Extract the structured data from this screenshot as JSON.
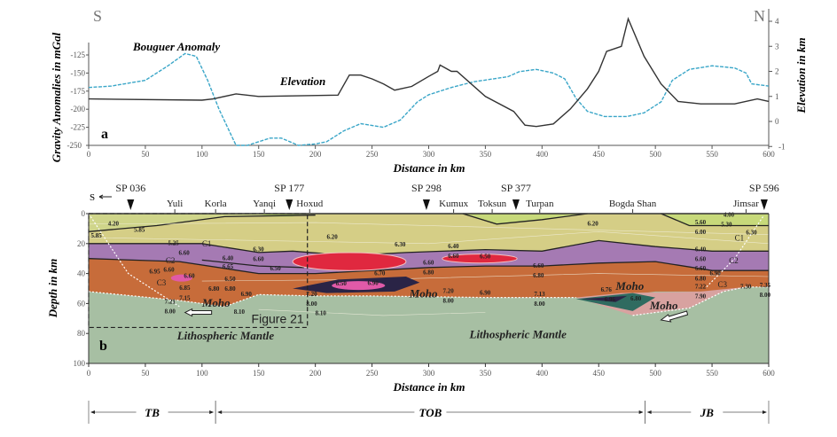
{
  "chart_data": [
    {
      "type": "line",
      "panel_label": "a",
      "direction_left": "S",
      "direction_right": "N",
      "xlabel": "Distance in km",
      "ylabel_left": "Gravity Anomalies in mGal",
      "ylabel_right": "Elevation in km",
      "xlim": [
        0,
        600
      ],
      "xticks": [
        0,
        50,
        100,
        150,
        200,
        250,
        300,
        350,
        400,
        450,
        500,
        550,
        600
      ],
      "ylim_left": [
        -250,
        -115
      ],
      "yticks_left": [
        -125,
        -150,
        -175,
        -200,
        -225,
        -250
      ],
      "ylim_right": [
        -1,
        4.3
      ],
      "yticks_right": [
        4,
        3,
        2,
        1,
        0,
        -1
      ],
      "series": [
        {
          "name": "Bouguer Anomaly",
          "axis": "left",
          "color": "#3aa6c8",
          "style": "dashed",
          "x": [
            0,
            20,
            50,
            70,
            85,
            95,
            105,
            115,
            130,
            140,
            160,
            170,
            185,
            200,
            210,
            225,
            240,
            260,
            275,
            290,
            300,
            320,
            340,
            370,
            380,
            395,
            410,
            420,
            430,
            440,
            455,
            475,
            490,
            505,
            515,
            530,
            550,
            570,
            580,
            585,
            600
          ],
          "y": [
            -170,
            -168,
            -160,
            -140,
            -123,
            -127,
            -160,
            -200,
            -250,
            -250,
            -240,
            -240,
            -250,
            -248,
            -245,
            -230,
            -220,
            -225,
            -215,
            -190,
            -180,
            -170,
            -162,
            -155,
            -148,
            -145,
            -150,
            -158,
            -185,
            -203,
            -210,
            -210,
            -205,
            -190,
            -160,
            -145,
            -140,
            -143,
            -150,
            -165,
            -168
          ]
        },
        {
          "name": "Elevation",
          "axis": "right",
          "color": "#333333",
          "style": "solid",
          "x": [
            0,
            100,
            110,
            130,
            150,
            220,
            230,
            240,
            250,
            260,
            270,
            285,
            300,
            308,
            310,
            320,
            325,
            350,
            375,
            385,
            395,
            410,
            425,
            440,
            450,
            457,
            470,
            476,
            490,
            505,
            520,
            540,
            570,
            590,
            600
          ],
          "y": [
            0.9,
            0.85,
            0.9,
            1.1,
            1.0,
            1.05,
            1.85,
            1.85,
            1.7,
            1.5,
            1.25,
            1.4,
            1.8,
            2.0,
            2.25,
            2.0,
            2.0,
            1.0,
            0.4,
            -0.15,
            -0.2,
            -0.1,
            0.5,
            1.3,
            2.0,
            2.8,
            3.0,
            4.1,
            2.6,
            1.5,
            0.8,
            0.7,
            0.7,
            0.9,
            0.8
          ]
        }
      ]
    },
    {
      "type": "cross-section",
      "panel_label": "b",
      "xlabel": "Distance in km",
      "ylabel": "Depth in km",
      "xlim": [
        0,
        600
      ],
      "ylim": [
        0,
        100
      ],
      "xticks": [
        0,
        50,
        100,
        150,
        200,
        250,
        300,
        350,
        400,
        450,
        500,
        550,
        600
      ],
      "yticks": [
        0,
        20,
        40,
        60,
        80,
        100
      ],
      "south_marker": "S",
      "shot_points": [
        {
          "label": "SP 036",
          "km": 37
        },
        {
          "label": "SP 177",
          "km": 177
        },
        {
          "label": "SP 298",
          "km": 298
        },
        {
          "label": "SP 377",
          "km": 377
        },
        {
          "label": "SP 596",
          "km": 596
        }
      ],
      "places": [
        {
          "label": "Yuli",
          "km": 76
        },
        {
          "label": "Korla",
          "km": 112
        },
        {
          "label": "Yanqi",
          "km": 155
        },
        {
          "label": "Hoxud",
          "km": 195
        },
        {
          "label": "Kumux",
          "km": 322
        },
        {
          "label": "Toksun",
          "km": 356
        },
        {
          "label": "Turpan",
          "km": 398
        },
        {
          "label": "Bogda Shan",
          "km": 480
        },
        {
          "label": "Jimsar",
          "km": 580
        }
      ],
      "inset_box_label": "Figure 21",
      "mantle_labels": [
        {
          "text": "Lithospheric Mantle",
          "km": 78,
          "depth": 84
        },
        {
          "text": "Lithospheric Mantle",
          "km": 336,
          "depth": 83
        }
      ],
      "moho_labels": [
        {
          "text": "Moho",
          "km": 100,
          "depth": 62
        },
        {
          "text": "Moho",
          "km": 283,
          "depth": 56
        },
        {
          "text": "Moho",
          "km": 465,
          "depth": 51
        },
        {
          "text": "Moho",
          "km": 495,
          "depth": 64
        }
      ],
      "layer_labels": [
        {
          "text": "C1",
          "km": 100,
          "depth": 22
        },
        {
          "text": "C2",
          "km": 68,
          "depth": 33
        },
        {
          "text": "C3",
          "km": 60,
          "depth": 48
        },
        {
          "text": "C1",
          "km": 570,
          "depth": 18
        },
        {
          "text": "C2",
          "km": 565,
          "depth": 33
        },
        {
          "text": "C3",
          "km": 555,
          "depth": 49
        }
      ],
      "velocity_labels": [
        {
          "text": "4.20",
          "km": 17,
          "depth": 8
        },
        {
          "text": "5.85",
          "km": 40,
          "depth": 12
        },
        {
          "text": "5.85",
          "km": 2,
          "depth": 16
        },
        {
          "text": "5.25",
          "km": 70,
          "depth": 21
        },
        {
          "text": "6.60",
          "km": 70,
          "depth": 24
        },
        {
          "text": "6.30",
          "km": 145,
          "depth": 25
        },
        {
          "text": "6.60",
          "km": 145,
          "depth": 28
        },
        {
          "text": "6.40",
          "km": 118,
          "depth": 31
        },
        {
          "text": "6.65",
          "km": 118,
          "depth": 35
        },
        {
          "text": "6.60",
          "km": 66,
          "depth": 37
        },
        {
          "text": "6.95",
          "km": 66,
          "depth": 40
        },
        {
          "text": "6.60",
          "km": 84,
          "depth": 43
        },
        {
          "text": "6.50",
          "km": 120,
          "depth": 45
        },
        {
          "text": "6.80",
          "km": 120,
          "depth": 48
        },
        {
          "text": "6.85",
          "km": 80,
          "depth": 51
        },
        {
          "text": "7.15",
          "km": 80,
          "depth": 54
        },
        {
          "text": "6.80",
          "km": 112,
          "depth": 55
        },
        {
          "text": "6.90",
          "km": 128,
          "depth": 55
        },
        {
          "text": "7.21",
          "km": 67,
          "depth": 60
        },
        {
          "text": "8.00",
          "km": 67,
          "depth": 63
        },
        {
          "text": "8.10",
          "km": 125,
          "depth": 67
        },
        {
          "text": "6.50",
          "km": 160,
          "depth": 38
        },
        {
          "text": "7.20",
          "km": 192,
          "depth": 55
        },
        {
          "text": "8.00",
          "km": 192,
          "depth": 58
        },
        {
          "text": "8.10",
          "km": 200,
          "depth": 66
        },
        {
          "text": "6.20",
          "km": 210,
          "depth": 17
        },
        {
          "text": "6.30",
          "km": 270,
          "depth": 22
        },
        {
          "text": "6.70",
          "km": 252,
          "depth": 41
        },
        {
          "text": "6.50",
          "km": 218,
          "depth": 48
        },
        {
          "text": "6.90",
          "km": 246,
          "depth": 46
        },
        {
          "text": "6.40",
          "km": 317,
          "depth": 23
        },
        {
          "text": "6.60",
          "km": 317,
          "depth": 26
        },
        {
          "text": "6.50",
          "km": 345,
          "depth": 30
        },
        {
          "text": "6.60",
          "km": 295,
          "depth": 34
        },
        {
          "text": "6.80",
          "km": 295,
          "depth": 37
        },
        {
          "text": "6.60",
          "km": 392,
          "depth": 36
        },
        {
          "text": "6.80",
          "km": 392,
          "depth": 39
        },
        {
          "text": "7.20",
          "km": 300,
          "depth": 53
        },
        {
          "text": "8.00",
          "km": 300,
          "depth": 56
        },
        {
          "text": "6.90",
          "km": 345,
          "depth": 54
        },
        {
          "text": "7.13",
          "km": 393,
          "depth": 55
        },
        {
          "text": "8.00",
          "km": 393,
          "depth": 58
        },
        {
          "text": "6.20",
          "km": 440,
          "depth": 8
        },
        {
          "text": "6.76",
          "km": 455,
          "depth": 52
        },
        {
          "text": "6.96",
          "km": 455,
          "depth": 55
        },
        {
          "text": "6.80",
          "km": 478,
          "depth": 58
        },
        {
          "text": "4.00",
          "km": 560,
          "depth": 2
        },
        {
          "text": "5.30",
          "km": 558,
          "depth": 5
        },
        {
          "text": "5.60",
          "km": 535,
          "depth": 7
        },
        {
          "text": "6.00",
          "km": 535,
          "depth": 10
        },
        {
          "text": "6.30",
          "km": 580,
          "depth": 14
        },
        {
          "text": "6.40",
          "km": 535,
          "depth": 25
        },
        {
          "text": "6.60",
          "km": 535,
          "depth": 28
        },
        {
          "text": "6.60",
          "km": 535,
          "depth": 38
        },
        {
          "text": "6.80",
          "km": 535,
          "depth": 41
        },
        {
          "text": "6.90",
          "km": 548,
          "depth": 43
        },
        {
          "text": "7.22",
          "km": 535,
          "depth": 50
        },
        {
          "text": "7.90",
          "km": 535,
          "depth": 53
        },
        {
          "text": "7.30",
          "km": 575,
          "depth": 50
        },
        {
          "text": "7.35",
          "km": 592,
          "depth": 49
        },
        {
          "text": "8.00",
          "km": 592,
          "depth": 52
        }
      ],
      "colors": {
        "sediment": "#b9d36a",
        "c1": "#d5ce86",
        "c2": "#a57ab3",
        "c3": "#c76c3a",
        "mantle": "#a7bfa3",
        "high_velocity": "#e0283f",
        "pink_body": "#e05aa8",
        "dark_body": "#2a2446",
        "bogda_wedge": "#d8a2a0",
        "teal_body": "#2f6b60"
      }
    }
  ],
  "regions": [
    {
      "label": "TB",
      "from_km": 0,
      "to_km": 112
    },
    {
      "label": "TOB",
      "from_km": 112,
      "to_km": 491
    },
    {
      "label": "JB",
      "from_km": 491,
      "to_km": 600
    }
  ]
}
